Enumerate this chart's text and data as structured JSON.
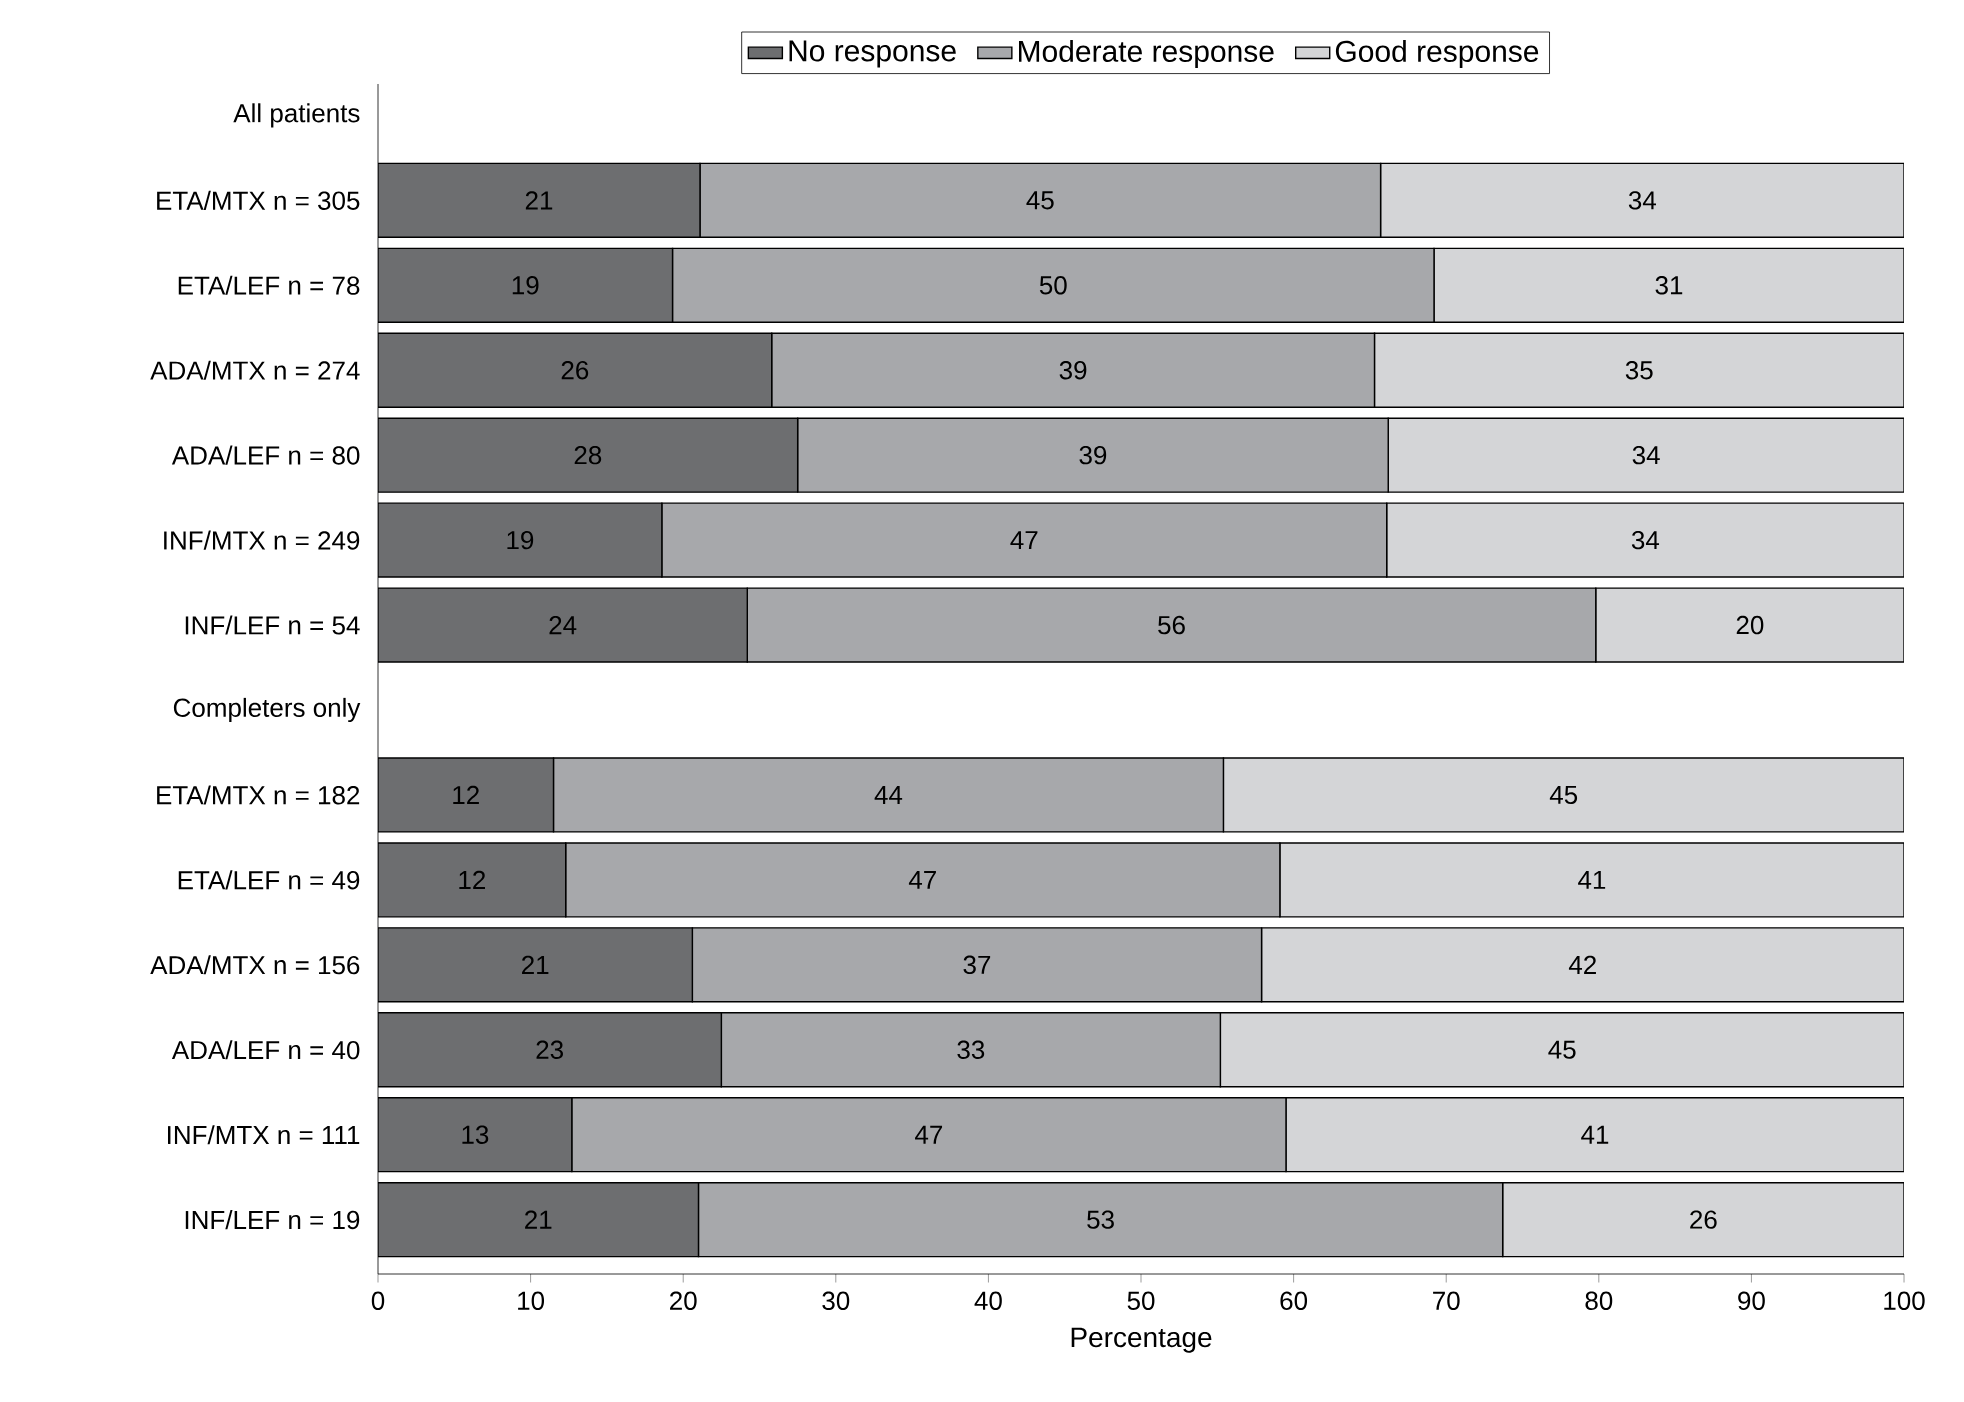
{
  "chart_data": {
    "type": "bar",
    "orientation": "horizontal",
    "stacked": true,
    "xlabel": "Percentage",
    "categories": [
      "All patients",
      "ETA/MTX n = 305",
      "ETA/LEF n = 78",
      "ADA/MTX n = 274",
      "ADA/LEF n = 80",
      "INF/MTX n = 249",
      "INF/LEF n = 54",
      "Completers only",
      "ETA/MTX n = 182",
      "ETA/LEF n = 49",
      "ADA/MTX n = 156",
      "ADA/LEF n = 40",
      "INF/MTX n = 111",
      "INF/LEF n = 19"
    ],
    "series": [
      {
        "name": "No response",
        "color": "#6d6e70",
        "values": [
          null,
          21.1,
          19.3,
          25.8,
          27.5,
          18.6,
          24.2,
          null,
          11.5,
          12.3,
          20.6,
          22.5,
          12.7,
          21.0
        ],
        "value_labels": [
          null,
          "21",
          "19",
          "26",
          "28",
          "19",
          "24",
          null,
          "12",
          "12",
          "21",
          "23",
          "13",
          "21"
        ]
      },
      {
        "name": "Moderate response",
        "color": "#a7a8ab",
        "values": [
          null,
          44.6,
          49.9,
          39.5,
          38.7,
          47.5,
          55.6,
          null,
          43.9,
          46.8,
          37.3,
          32.7,
          46.8,
          52.7
        ],
        "value_labels": [
          null,
          "45",
          "50",
          "39",
          "39",
          "47",
          "56",
          null,
          "44",
          "47",
          "37",
          "33",
          "47",
          "53"
        ]
      },
      {
        "name": "Good response",
        "color": "#d4d5d7",
        "values": [
          null,
          34.3,
          30.8,
          34.7,
          33.8,
          33.9,
          20.2,
          null,
          44.6,
          40.9,
          42.1,
          44.8,
          40.5,
          26.3
        ],
        "value_labels": [
          null,
          "34",
          "31",
          "35",
          "34",
          "34",
          "20",
          null,
          "45",
          "41",
          "42",
          "45",
          "41",
          "26"
        ]
      }
    ],
    "xlim": [
      0,
      100
    ],
    "xticks": [
      0,
      10,
      20,
      30,
      40,
      50,
      60,
      70,
      80,
      90,
      100
    ],
    "legend": "top"
  }
}
